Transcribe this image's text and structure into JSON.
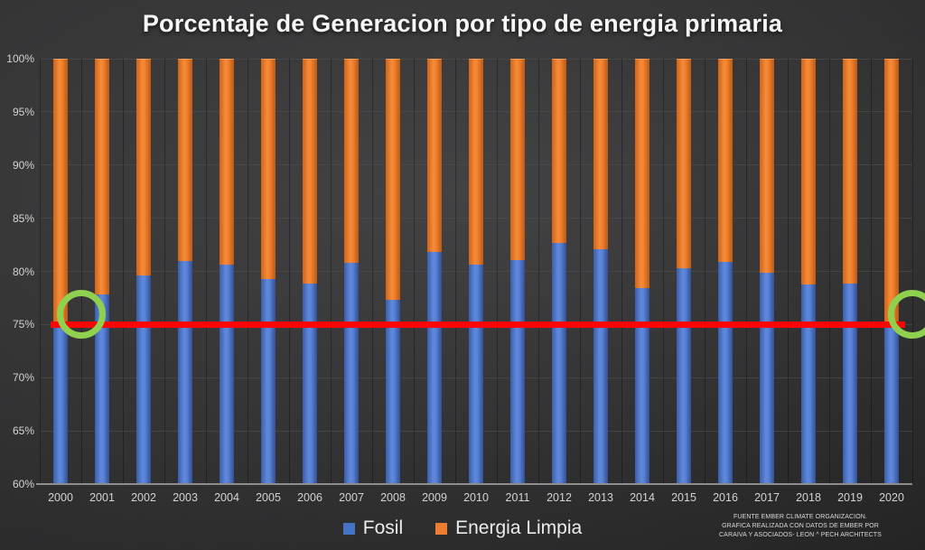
{
  "title": "Porcentaje de Generacion por tipo de energia primaria",
  "chart_data": {
    "type": "bar",
    "stacked": true,
    "title": "Porcentaje de Generacion por tipo de energia primaria",
    "categories": [
      "2000",
      "2001",
      "2002",
      "2003",
      "2004",
      "2005",
      "2006",
      "2007",
      "2008",
      "2009",
      "2010",
      "2011",
      "2012",
      "2013",
      "2014",
      "2015",
      "2016",
      "2017",
      "2018",
      "2019",
      "2020"
    ],
    "series": [
      {
        "name": "Fosil",
        "color": "#4472c4",
        "values": [
          75.2,
          77.8,
          79.6,
          81.0,
          80.6,
          79.3,
          78.9,
          80.8,
          77.3,
          81.8,
          80.6,
          81.1,
          82.7,
          82.1,
          78.4,
          80.3,
          80.9,
          79.9,
          78.8,
          78.9,
          74.9
        ]
      },
      {
        "name": "Energia Limpia",
        "color": "#ed7d31",
        "values": [
          24.8,
          22.2,
          20.4,
          19.0,
          19.4,
          20.7,
          21.1,
          19.2,
          22.7,
          18.2,
          19.4,
          18.9,
          17.3,
          17.9,
          21.6,
          19.7,
          19.1,
          20.1,
          21.2,
          21.1,
          25.1
        ]
      }
    ],
    "ylim": [
      60,
      100
    ],
    "ytick_step": 5,
    "ytick_labels": [
      "100%",
      "95%",
      "90%",
      "85%",
      "80%",
      "75%",
      "70%",
      "65%",
      "60%"
    ],
    "grid": "horizontal",
    "legend_position": "bottom",
    "annotations": {
      "reference_line": {
        "value": 75,
        "color": "#fe0505"
      },
      "highlight_circles": [
        {
          "near_year": "2000",
          "value": 76
        },
        {
          "near_year": "2020",
          "value": 76
        }
      ],
      "circle_color": "#8fd14f"
    }
  },
  "legend": {
    "items": [
      {
        "label": "Fosil",
        "color": "#4472c4"
      },
      {
        "label": "Energia Limpia",
        "color": "#ed7d31"
      }
    ]
  },
  "source_note": {
    "lines": [
      "FUENTE EMBER CLIMATE ORGANIZACION.",
      "GRAFICA REALIZADA CON DATOS DE EMBER POR",
      "CARAIVA Y ASOCIADOS- LEON ^ PECH ARCHITECTS"
    ]
  }
}
